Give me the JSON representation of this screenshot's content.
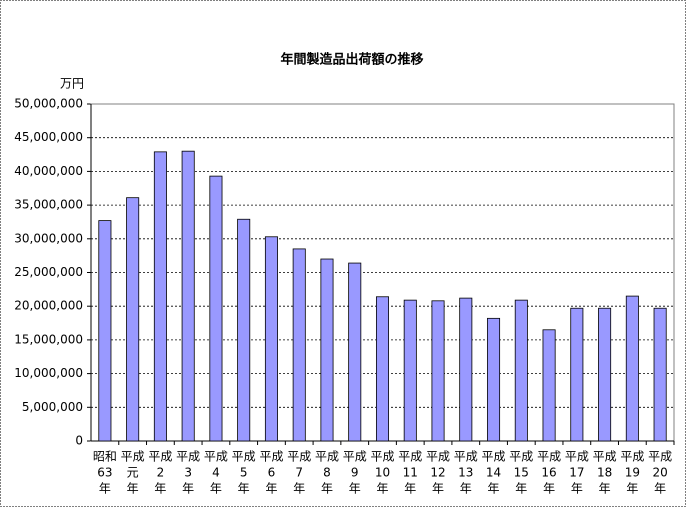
{
  "chart_data": {
    "type": "bar",
    "title": "年間製造品出荷額の推移",
    "y_label": "万円",
    "categories": [
      [
        "昭和",
        "63",
        "年"
      ],
      [
        "平成",
        "元",
        "年"
      ],
      [
        "平成",
        "2",
        "年"
      ],
      [
        "平成",
        "3",
        "年"
      ],
      [
        "平成",
        "4",
        "年"
      ],
      [
        "平成",
        "5",
        "年"
      ],
      [
        "平成",
        "6",
        "年"
      ],
      [
        "平成",
        "7",
        "年"
      ],
      [
        "平成",
        "8",
        "年"
      ],
      [
        "平成",
        "9",
        "年"
      ],
      [
        "平成",
        "10",
        "年"
      ],
      [
        "平成",
        "11",
        "年"
      ],
      [
        "平成",
        "12",
        "年"
      ],
      [
        "平成",
        "13",
        "年"
      ],
      [
        "平成",
        "14",
        "年"
      ],
      [
        "平成",
        "15",
        "年"
      ],
      [
        "平成",
        "16",
        "年"
      ],
      [
        "平成",
        "17",
        "年"
      ],
      [
        "平成",
        "18",
        "年"
      ],
      [
        "平成",
        "19",
        "年"
      ],
      [
        "平成",
        "20",
        "年"
      ]
    ],
    "values": [
      32700000,
      36100000,
      42900000,
      43000000,
      39300000,
      32900000,
      30300000,
      28500000,
      27000000,
      26400000,
      21400000,
      20900000,
      20800000,
      21200000,
      18200000,
      20900000,
      16500000,
      19700000,
      19700000,
      21500000,
      19700000
    ],
    "color": "#9999ff",
    "ylim": [
      0,
      50000000
    ],
    "yticks": [
      0,
      {
        "value": 5000000,
        "label": "5,000,000"
      },
      {
        "value": 10000000,
        "label": "10,000,000"
      },
      {
        "value": 15000000,
        "label": "15,000,000"
      },
      {
        "value": 20000000,
        "label": "20,000,000"
      },
      {
        "value": 25000000,
        "label": "25,000,000"
      },
      {
        "value": 30000000,
        "label": "30,000,000"
      },
      {
        "value": 35000000,
        "label": "35,000,000"
      },
      {
        "value": 40000000,
        "label": "40,000,000"
      },
      {
        "value": 45000000,
        "label": "45,000,000"
      },
      {
        "value": 50000000,
        "label": "50,000,000"
      }
    ],
    "grid": true
  }
}
